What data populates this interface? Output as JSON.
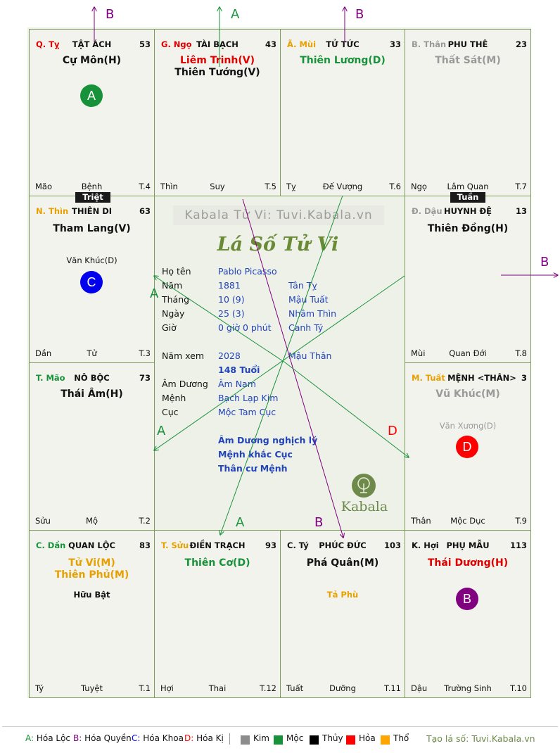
{
  "site_watermark": "Kabala Tử Vi: Tuvi.Kabala.vn",
  "center_title": "Lá Số Tử Vi",
  "logo_text": "Kabala",
  "cells": [
    {
      "can": "Q. Tỵ",
      "ten": "TẬT ÁCH",
      "age": "53",
      "stars": [
        "Cự Môn(H)"
      ],
      "minor": "",
      "chi": "Mão",
      "vt": "Bệnh",
      "num": "T.4"
    },
    {
      "can": "G. Ngọ",
      "ten": "TÀI BẠCH",
      "age": "43",
      "stars": [
        "Liêm Trinh(V)",
        "Thiên Tướng(V)"
      ],
      "minor": "",
      "chi": "Thìn",
      "vt": "Suy",
      "num": "T.5"
    },
    {
      "can": "Ã. Mùi",
      "ten": "TỬ TỨC",
      "age": "33",
      "stars": [
        "Thiên Lương(D)"
      ],
      "minor": "",
      "chi": "Tỵ",
      "vt": "Đế Vượng",
      "num": "T.6"
    },
    {
      "can": "B. Thân",
      "ten": "PHU THÊ",
      "age": "23",
      "stars": [
        "Thất Sát(M)"
      ],
      "minor": "",
      "chi": "Ngọ",
      "vt": "Lâm Quan",
      "num": "T.7"
    },
    {
      "can": "N. Thìn",
      "ten": "THIÊN DI",
      "age": "63",
      "stars": [
        "Tham Lang(V)"
      ],
      "minor": "Văn Khúc(D)",
      "chi": "Dần",
      "vt": "Tử",
      "num": "T.3"
    },
    {
      "can": "Đ. Dậu",
      "ten": "HUYNH ĐỆ",
      "age": "13",
      "stars": [
        "Thiên Đồng(H)"
      ],
      "minor": "",
      "chi": "Mùi",
      "vt": "Quan Đới",
      "num": "T.8"
    },
    {
      "can": "T. Mão",
      "ten": "NÔ BỘC",
      "age": "73",
      "stars": [
        "Thái Âm(H)"
      ],
      "minor": "",
      "chi": "Sửu",
      "vt": "Mộ",
      "num": "T.2"
    },
    {
      "can": "M. Tuất",
      "ten": "MỆNH <THÂN>",
      "age": "3",
      "stars": [
        "Vũ Khúc(M)"
      ],
      "minor": "Văn Xương(D)",
      "chi": "Thân",
      "vt": "Mộc Dục",
      "num": "T.9"
    },
    {
      "can": "C. Dần",
      "ten": "QUAN LỘC",
      "age": "83",
      "stars": [
        "Tử Vi(M)",
        "Thiên Phủ(M)"
      ],
      "minor": "Hữu Bật",
      "chi": "Tý",
      "vt": "Tuyệt",
      "num": "T.1"
    },
    {
      "can": "T. Sửu",
      "ten": "ĐIỀN TRẠCH",
      "age": "93",
      "stars": [
        "Thiên Cơ(D)"
      ],
      "minor": "",
      "chi": "Hợi",
      "vt": "Thai",
      "num": "T.12"
    },
    {
      "can": "C. Tý",
      "ten": "PHÚC ĐỨC",
      "age": "103",
      "stars": [
        "Phá Quân(M)"
      ],
      "minor": "Tả Phù",
      "chi": "Tuất",
      "vt": "Dưỡng",
      "num": "T.11"
    },
    {
      "can": "K. Hợi",
      "ten": "PHỤ MẪU",
      "age": "113",
      "stars": [
        "Thái Dương(H)"
      ],
      "minor": "",
      "chi": "Dậu",
      "vt": "Trường Sinh",
      "num": "T.10"
    }
  ],
  "tags": {
    "triet": "Triệt",
    "tuan": "Tuần"
  },
  "badges": {
    "a": "A",
    "b": "B",
    "c": "C",
    "d": "D"
  },
  "info": {
    "ho_ten_label": "Họ tên",
    "ho_ten": "Pablo Picasso",
    "nam_label": "Năm",
    "nam": "1881",
    "nam_can": "Tân Tỵ",
    "thang_label": "Tháng",
    "thang": "10  (9)",
    "thang_can": "Mậu Tuất",
    "ngay_label": "Ngày",
    "ngay": "25  (3)",
    "ngay_can": "Nhâm Thìn",
    "gio_label": "Giờ",
    "gio": "0 giờ 0 phút",
    "gio_can": "Canh Tý",
    "nam_xem_label": "Năm xem",
    "nam_xem": "2028",
    "nam_xem_can": "Mậu Thân",
    "tuoi": "148 Tuổi",
    "am_duong_label": "Âm Dương",
    "am_duong": "Âm Nam",
    "menh_label": "Mệnh",
    "menh": "Bạch Lạp Kim",
    "cuc_label": "Cục",
    "cuc": "Mộc Tam Cục",
    "note1": "Âm Dương nghịch lý",
    "note2": "Mệnh khắc Cục",
    "note3": "Thân cư Mệnh"
  },
  "arrow_labels": {
    "a": "A",
    "b": "B",
    "d": "D"
  },
  "legend": {
    "a_key": "A:",
    "a": "Hóa Lộc",
    "b_key": "B:",
    "b": "Hóa Quyền",
    "c_key": "C:",
    "c": "Hóa Khoa",
    "d_key": "D:",
    "d": "Hóa Kị",
    "kim": "Kim",
    "moc": "Mộc",
    "thuy": "Thủy",
    "hoa": "Hỏa",
    "tho": "Thổ",
    "site": "Tạo lá số: Tuvi.Kabala.vn"
  },
  "colors": {
    "kim": "#8c8c8c",
    "moc": "#18923a",
    "thuy": "#000000",
    "hoa": "#ff0000",
    "tho": "#ffa500",
    "a": "#18923a",
    "b": "#800080",
    "c": "#0000ee",
    "d": "#ff0000",
    "grid": "#7c9c5c"
  }
}
